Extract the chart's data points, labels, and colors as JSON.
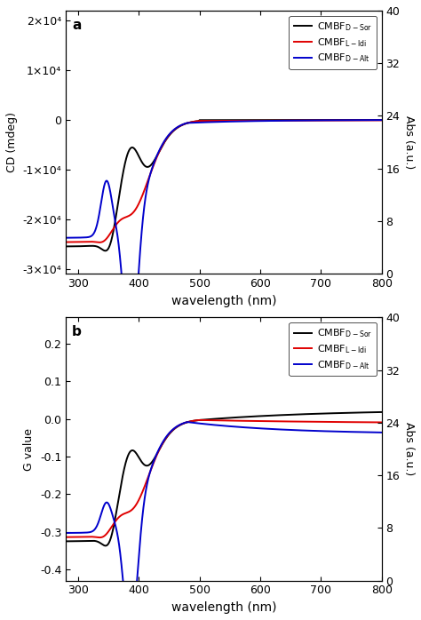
{
  "wavelength_min": 280,
  "wavelength_max": 800,
  "abs_scale_max": 40,
  "abs_ticks": [
    0,
    8,
    16,
    24,
    32,
    40
  ],
  "panel_a": {
    "label": "a",
    "ylabel": "CD (mdeg)",
    "ylim": [
      -31000,
      22000
    ],
    "yticks": [
      -30000,
      -20000,
      -10000,
      0,
      10000,
      20000
    ],
    "yticklabels": [
      "-3×10⁴",
      "-2×10⁴",
      "-1×10⁴",
      "0",
      "1×10⁴",
      "2×10⁴"
    ]
  },
  "panel_b": {
    "label": "b",
    "ylabel": "G value",
    "ylim": [
      -0.43,
      0.27
    ],
    "yticks": [
      -0.4,
      -0.3,
      -0.2,
      -0.1,
      0.0,
      0.1,
      0.2
    ],
    "yticklabels": [
      "-0.4",
      "-0.3",
      "-0.2",
      "-0.1",
      "0.0",
      "0.1",
      "0.2"
    ]
  },
  "line_colors": {
    "DSor": "#000000",
    "LIdi": "#e00000",
    "DAlt": "#0000cc"
  },
  "xlabel": "wavelength (nm)",
  "right_ylabel": "Abs (a.u.)",
  "linewidth": 1.4
}
